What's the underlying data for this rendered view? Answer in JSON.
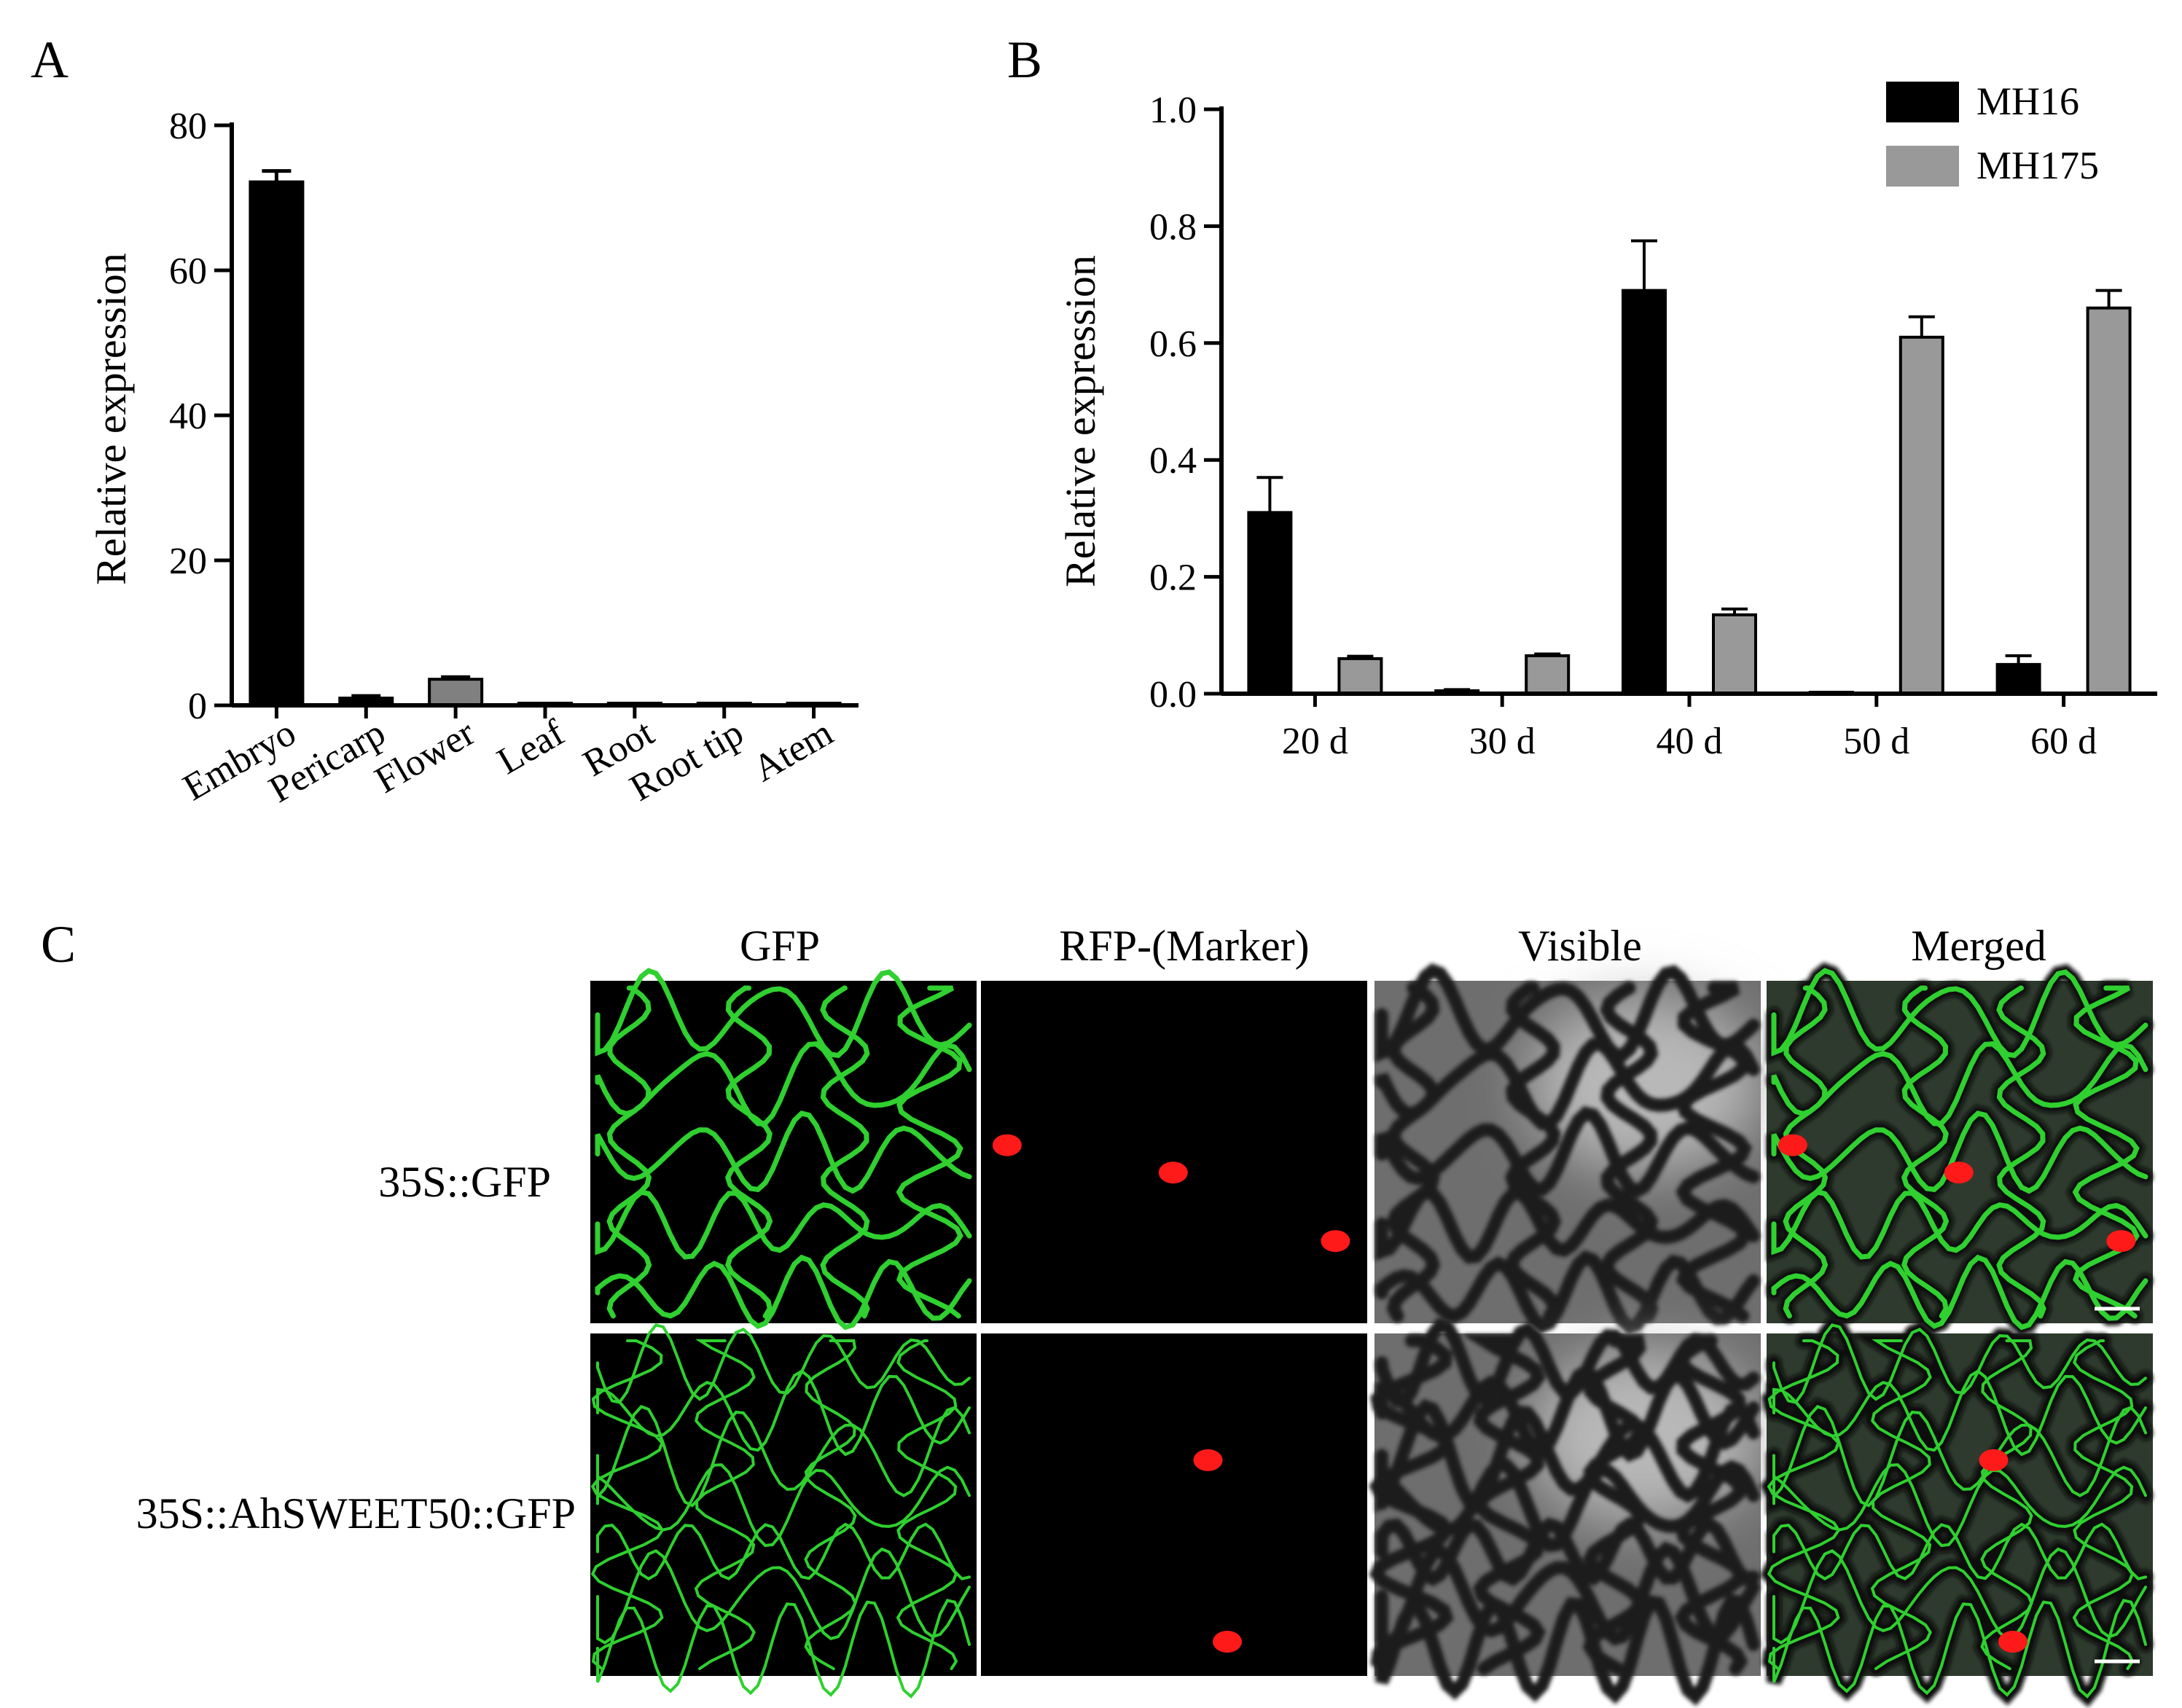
{
  "panels": {
    "a": {
      "letter": "A"
    },
    "b": {
      "letter": "B"
    },
    "c": {
      "letter": "C"
    }
  },
  "chart_data": [
    {
      "type": "bar",
      "panel": "A",
      "title": "",
      "xlabel": "",
      "ylabel": "Relative expression",
      "ylim": [
        0,
        80
      ],
      "yticks": [
        0,
        20,
        40,
        60,
        80
      ],
      "categories": [
        "Embryo",
        "Pericarp",
        "Flower",
        "Leaf",
        "Root",
        "Root tip",
        "Atem"
      ],
      "values": [
        72.2,
        1.0,
        3.6,
        0.3,
        0.3,
        0.3,
        0.2
      ],
      "errors": [
        1.5,
        0.3,
        0.3,
        0.05,
        0.05,
        0.05,
        0.05
      ],
      "bar_colors": [
        "#000000",
        "#000000",
        "#808080",
        "#000000",
        "#000000",
        "#000000",
        "#000000"
      ],
      "grid": false,
      "legend": "none"
    },
    {
      "type": "bar",
      "panel": "B",
      "title": "",
      "xlabel": "",
      "ylabel": "Relative expression",
      "ylim": [
        0,
        1.0
      ],
      "yticks": [
        "0.0",
        "0.2",
        "0.4",
        "0.6",
        "0.8",
        "1.0"
      ],
      "categories": [
        "20 d",
        "30 d",
        "40 d",
        "50 d",
        "60 d"
      ],
      "series": [
        {
          "name": "MH16",
          "color": "#000000",
          "values": [
            0.31,
            0.005,
            0.69,
            0.0,
            0.05
          ],
          "errors": [
            0.06,
            0.002,
            0.085,
            0.0,
            0.015
          ]
        },
        {
          "name": "MH175",
          "color": "#999999",
          "values": [
            0.06,
            0.065,
            0.135,
            0.61,
            0.66
          ],
          "errors": [
            0.004,
            0.003,
            0.01,
            0.035,
            0.03
          ]
        }
      ],
      "grid": false,
      "legend": "top-right"
    }
  ],
  "microscopy": {
    "columns": [
      "GFP",
      "RFP-(Marker)",
      "Visible",
      "Merged"
    ],
    "rows": [
      "35S::GFP",
      "35S::AhSWEET50::GFP"
    ],
    "channel_colors": {
      "gfp": "#2fd02f",
      "rfp": "#ff1a1a",
      "visible": "#8a8a8a",
      "background": "#000000"
    }
  }
}
